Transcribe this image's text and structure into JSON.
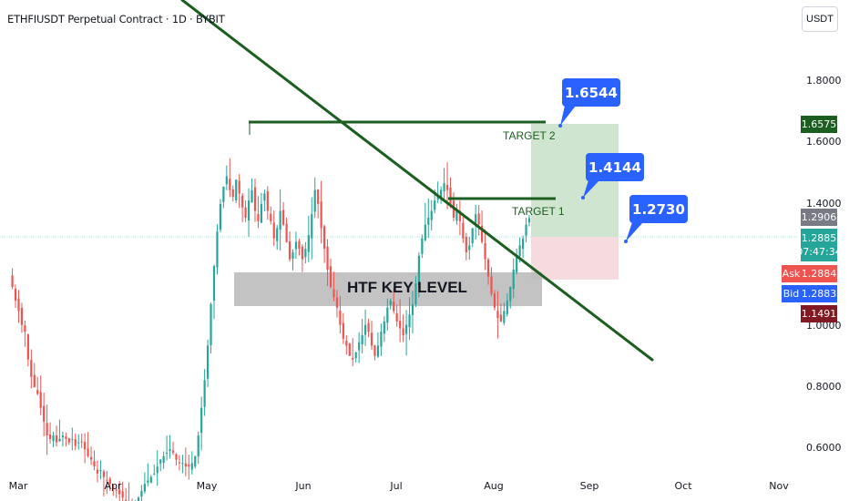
{
  "header": {
    "title": "ETHFIUSDT Perpetual Contract · 1D · BYBIT",
    "currency": "USDT"
  },
  "axis": {
    "y_ticks": [
      "1.8000",
      "1.6000",
      "1.4000",
      "1.0000",
      "0.8000",
      "0.6000"
    ],
    "x_ticks": [
      "Mar",
      "Apr",
      "May",
      "Jun",
      "Jul",
      "Aug",
      "Sep",
      "Oct",
      "Nov"
    ]
  },
  "price_badges": {
    "target_price": "1.6575",
    "gray_price": "1.2906",
    "last_price": "1.2885",
    "countdown": "07:47:34",
    "ask_label": "Ask",
    "ask_price": "1.2884",
    "bid_label": "Bid",
    "bid_price": "1.2883",
    "stop_price": "1.1491"
  },
  "annotations": {
    "callout_1": "1.6544",
    "callout_2": "1.4144",
    "callout_3": "1.2730",
    "target_2": "TARGET 2",
    "target_1": "TARGET 1",
    "key_level": "HTF KEY LEVEL"
  },
  "colors": {
    "up": "#26a69a",
    "down": "#ef5350",
    "trendline": "#1b5e20",
    "target_zone": "#c8e0c8",
    "stop_zone": "#f4d5d8",
    "key_zone": "#b8b8b8",
    "callout": "#2962ff",
    "target_badge": "#1b5e20",
    "gray_badge": "#787b86",
    "last_badge": "#26a69a",
    "stop_badge": "#801922"
  },
  "chart_data": {
    "type": "candlestick",
    "y_scale": "linear",
    "ylim": [
      0.56,
      1.92
    ],
    "x_range": [
      "Mar",
      "Nov"
    ],
    "targets": [
      {
        "name": "TARGET 2",
        "value": 1.6544
      },
      {
        "name": "TARGET 1",
        "value": 1.4144
      }
    ],
    "entry": 1.273,
    "stop": 1.1491,
    "key_level_zone": [
      1.1,
      1.21
    ],
    "trendline": {
      "from": {
        "x": "Feb 27",
        "y": 2.0
      },
      "to": {
        "x": "Sep 28",
        "y": 0.89
      }
    },
    "closes": [
      1.12,
      1.09,
      1.05,
      1.02,
      0.98,
      0.96,
      0.88,
      0.83,
      0.8,
      0.78,
      0.74,
      0.7,
      0.66,
      0.65,
      0.66,
      0.64,
      0.65,
      0.66,
      0.65,
      0.64,
      0.65,
      0.63,
      0.64,
      0.64,
      0.62,
      0.6,
      0.59,
      0.57,
      0.55,
      0.56,
      0.54,
      0.53,
      0.52,
      0.51,
      0.5,
      0.49,
      0.48,
      0.47,
      0.46,
      0.46,
      0.47,
      0.48,
      0.5,
      0.52,
      0.53,
      0.54,
      0.55,
      0.57,
      0.59,
      0.6,
      0.61,
      0.62,
      0.61,
      0.59,
      0.58,
      0.58,
      0.57,
      0.57,
      0.58,
      0.6,
      0.66,
      0.74,
      0.82,
      0.92,
      1.04,
      1.15,
      1.25,
      1.33,
      1.38,
      1.41,
      1.37,
      1.35,
      1.4,
      1.36,
      1.32,
      1.29,
      1.34,
      1.37,
      1.31,
      1.28,
      1.33,
      1.36,
      1.31,
      1.28,
      1.23,
      1.26,
      1.31,
      1.27,
      1.22,
      1.17,
      1.19,
      1.22,
      1.2,
      1.17,
      1.2,
      1.24,
      1.3,
      1.37,
      1.33,
      1.26,
      1.2,
      1.14,
      1.09,
      1.06,
      1.03,
      0.98,
      0.94,
      0.92,
      0.89,
      0.88,
      0.9,
      0.93,
      0.95,
      0.98,
      0.96,
      0.92,
      0.89,
      0.92,
      0.96,
      0.99,
      1.03,
      1.05,
      1.02,
      0.99,
      0.97,
      0.95,
      0.98,
      1.01,
      1.04,
      1.1,
      1.18,
      1.23,
      1.27,
      1.29,
      1.31,
      1.34,
      1.35,
      1.37,
      1.39,
      1.37,
      1.33,
      1.29,
      1.31,
      1.28,
      1.23,
      1.19,
      1.21,
      1.26,
      1.3,
      1.27,
      1.22,
      1.17,
      1.12,
      1.07,
      1.03,
      1.0,
      0.99,
      1.02,
      1.05,
      1.09,
      1.14,
      1.18,
      1.21,
      1.23,
      1.27,
      1.2885
    ]
  }
}
